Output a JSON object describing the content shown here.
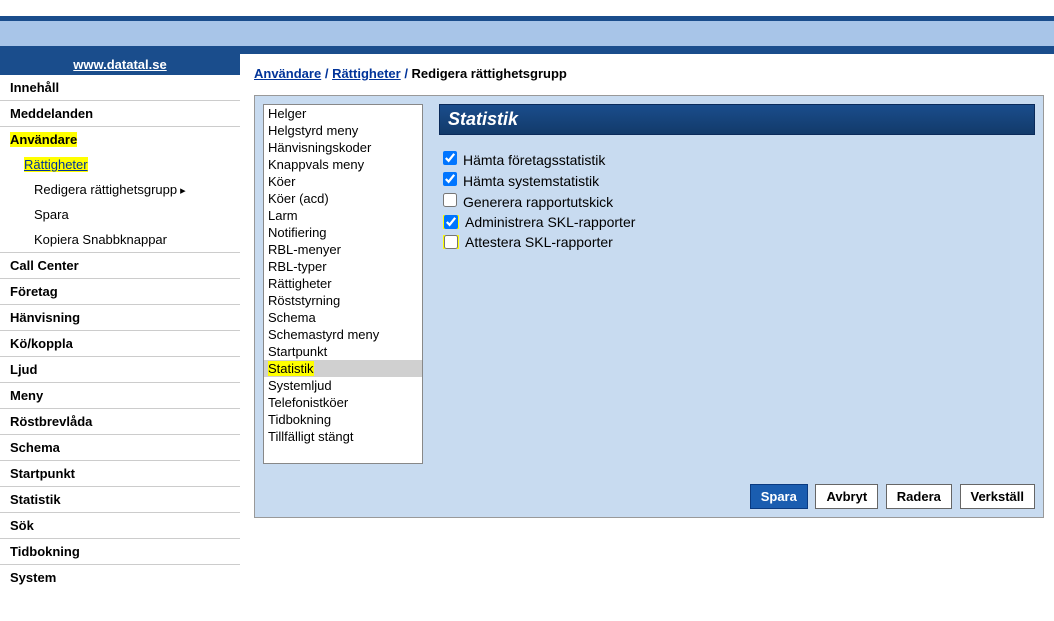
{
  "header": {
    "site_link": "www.datatal.se"
  },
  "nav": {
    "items": [
      {
        "label": "Innehåll",
        "type": "top"
      },
      {
        "label": "Meddelanden",
        "type": "top"
      },
      {
        "label": "Användare",
        "type": "top",
        "highlight": true
      },
      {
        "label": "Rättigheter",
        "type": "sub",
        "link": true,
        "highlight": true
      },
      {
        "label": "Redigera rättighetsgrupp",
        "type": "sub2",
        "arrow": true
      },
      {
        "label": "Spara",
        "type": "sub2"
      },
      {
        "label": "Kopiera Snabbknappar",
        "type": "sub2"
      },
      {
        "label": "Call Center",
        "type": "top"
      },
      {
        "label": "Företag",
        "type": "top"
      },
      {
        "label": "Hänvisning",
        "type": "top"
      },
      {
        "label": "Kö/koppla",
        "type": "top"
      },
      {
        "label": "Ljud",
        "type": "top"
      },
      {
        "label": "Meny",
        "type": "top"
      },
      {
        "label": "Röstbrevlåda",
        "type": "top"
      },
      {
        "label": "Schema",
        "type": "top"
      },
      {
        "label": "Startpunkt",
        "type": "top"
      },
      {
        "label": "Statistik",
        "type": "top"
      },
      {
        "label": "Sök",
        "type": "top"
      },
      {
        "label": "Tidbokning",
        "type": "top"
      },
      {
        "label": "System",
        "type": "top"
      }
    ]
  },
  "breadcrumb": {
    "a": "Användare",
    "b": "Rättigheter",
    "current": "Redigera rättighetsgrupp",
    "sep": "/"
  },
  "listbox": {
    "items": [
      "Helger",
      "Helgstyrd meny",
      "Hänvisningskoder",
      "Knappvals meny",
      "Köer",
      "Köer (acd)",
      "Larm",
      "Notifiering",
      "RBL-menyer",
      "RBL-typer",
      "Rättigheter",
      "Röststyrning",
      "Schema",
      "Schemastyrd meny",
      "Startpunkt",
      "Statistik",
      "Systemljud",
      "Telefonistköer",
      "Tidbokning",
      "Tillfälligt stängt"
    ],
    "selected_index": 15
  },
  "section": {
    "title": "Statistik",
    "checks": [
      {
        "label": "Hämta företagsstatistik",
        "checked": true,
        "highlight": false
      },
      {
        "label": "Hämta systemstatistik",
        "checked": true,
        "highlight": false
      },
      {
        "label": "Generera rapportutskick",
        "checked": false,
        "highlight": false
      },
      {
        "label": "Administrera SKL-rapporter",
        "checked": true,
        "highlight": true
      },
      {
        "label": "Attestera SKL-rapporter",
        "checked": false,
        "highlight": true
      }
    ]
  },
  "buttons": {
    "save": "Spara",
    "cancel": "Avbryt",
    "delete": "Radera",
    "apply": "Verkställ"
  }
}
